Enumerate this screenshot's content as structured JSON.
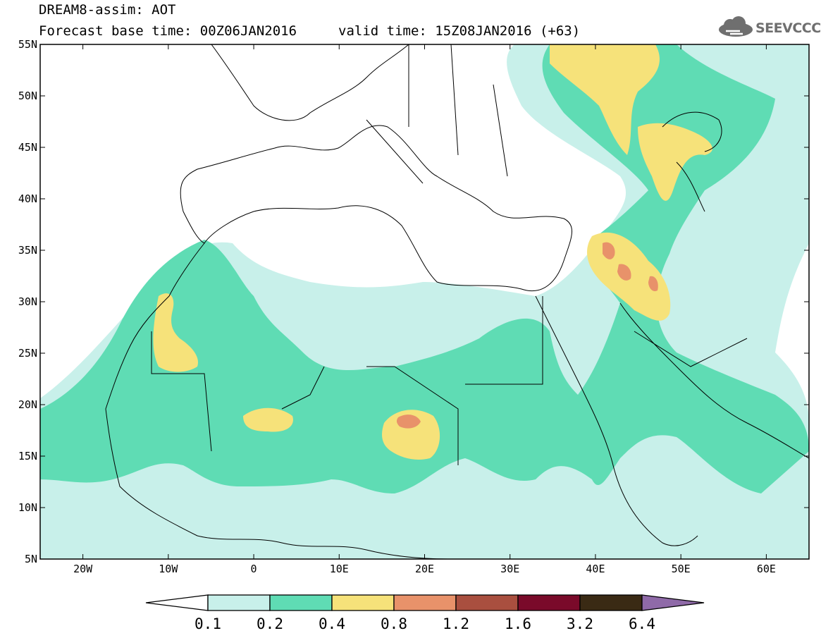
{
  "header": {
    "line1": "DREAM8-assim: AOT",
    "line2": "Forecast base time: 00Z06JAN2016",
    "valid": "valid time: 15Z08JAN2016 (+63)"
  },
  "logo": {
    "text": "SEEVCCC",
    "icon": "cloud-icon"
  },
  "map": {
    "lat_labels": [
      "55N",
      "50N",
      "45N",
      "40N",
      "35N",
      "30N",
      "25N",
      "20N",
      "15N",
      "10N",
      "5N"
    ],
    "lon_labels": [
      "20W",
      "10W",
      "0",
      "10E",
      "20E",
      "30E",
      "40E",
      "50E",
      "60E"
    ],
    "lat_range": [
      5,
      55
    ],
    "lon_range": [
      -25,
      65
    ]
  },
  "colorbar": {
    "labels": [
      "0.1",
      "0.2",
      "0.4",
      "0.8",
      "1.2",
      "1.6",
      "3.2",
      "6.4"
    ],
    "colors": [
      "#c8f0ea",
      "#5fdcb4",
      "#f6e27a",
      "#e8926a",
      "#a94f3f",
      "#7a0a2a",
      "#3a2a14",
      "#8f6aa8"
    ]
  }
}
